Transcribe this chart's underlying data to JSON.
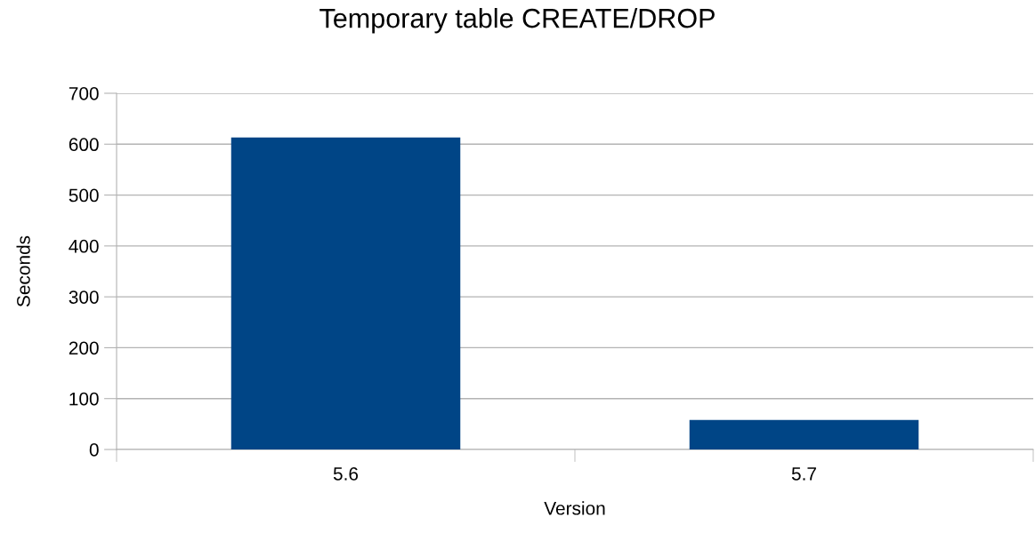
{
  "chart_data": {
    "type": "bar",
    "title": "Temporary table CREATE/DROP",
    "xlabel": "Version",
    "ylabel": "Seconds",
    "categories": [
      "5.6",
      "5.7"
    ],
    "values": [
      613,
      58
    ],
    "color": "#004586",
    "ylim": [
      0,
      700
    ],
    "yticks": [
      0,
      100,
      200,
      300,
      400,
      500,
      600,
      700
    ],
    "grid": "y",
    "legend": false
  }
}
